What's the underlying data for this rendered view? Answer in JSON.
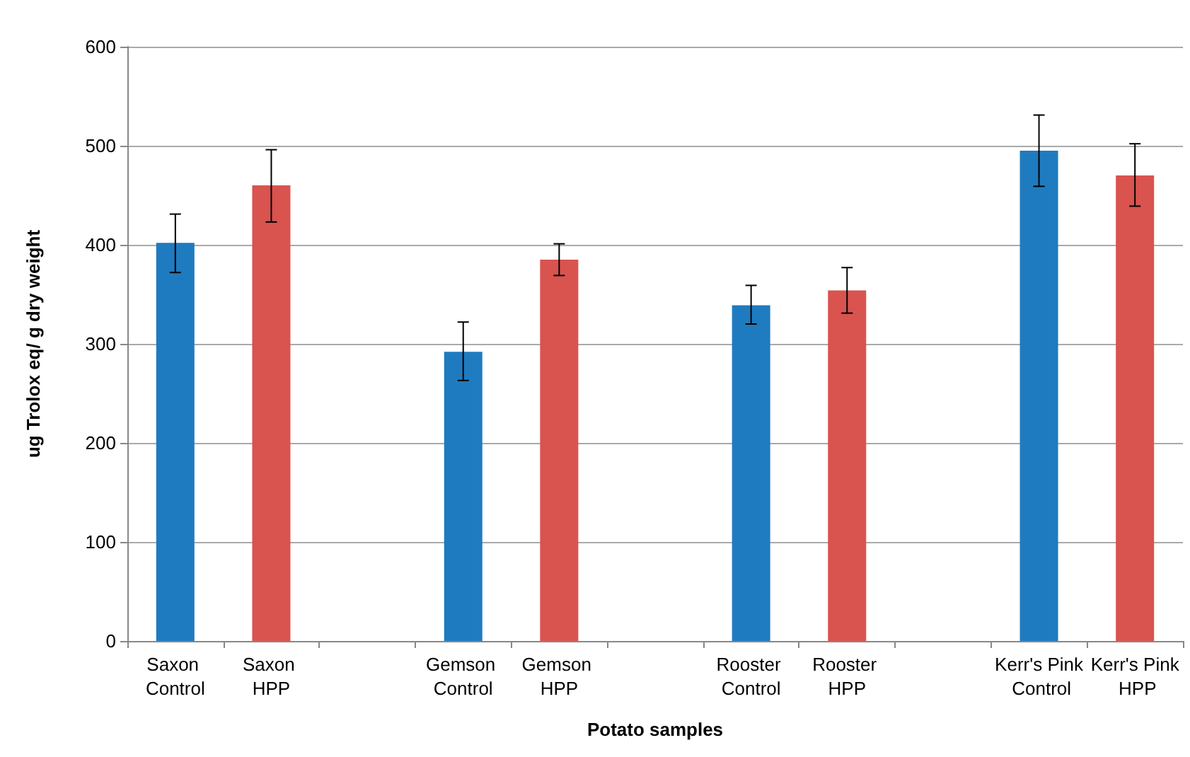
{
  "chart_data": {
    "type": "bar",
    "xlabel": "Potato samples",
    "ylabel": "ug Trolox eq/ g dry weight",
    "categories": [
      "Saxon Control",
      "Saxon HPP",
      null,
      "Gemson Control",
      "Gemson HPP",
      null,
      "Rooster Control",
      "Rooster HPP",
      null,
      "Kerr's Pink Control",
      "Kerr's Pink HPP"
    ],
    "values": [
      402,
      460,
      null,
      292,
      385,
      null,
      339,
      354,
      null,
      495,
      470
    ],
    "colors": [
      "#1f7bbf",
      "#d9534f",
      null,
      "#1f7bbf",
      "#d9534f",
      null,
      "#1f7bbf",
      "#d9534f",
      null,
      "#1f7bbf",
      "#d9534f"
    ],
    "errors": [
      [
        372,
        431
      ],
      [
        423,
        496
      ],
      null,
      [
        263,
        322
      ],
      [
        369,
        401
      ],
      null,
      [
        320,
        359
      ],
      [
        331,
        377
      ],
      null,
      [
        459,
        531
      ],
      [
        439,
        502
      ]
    ],
    "ylim": [
      0,
      600
    ],
    "yticks": [
      0,
      100,
      200,
      300,
      400,
      500,
      600
    ],
    "grid": "y"
  }
}
